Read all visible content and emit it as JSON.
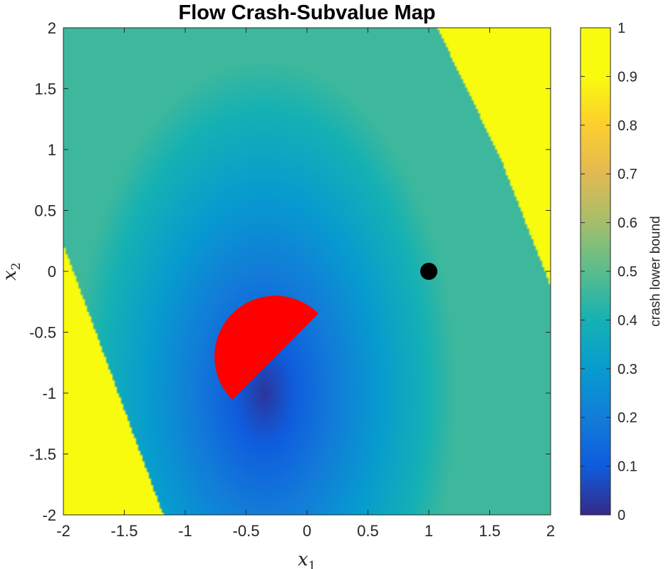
{
  "chart_data": {
    "type": "heatmap",
    "title": "Flow Crash-Subvalue Map",
    "xlabel": "x",
    "xlabel_sub": "1",
    "ylabel": "x",
    "ylabel_sub": "2",
    "xlim": [
      -2,
      2
    ],
    "ylim": [
      -2,
      2
    ],
    "xticks": [
      -2,
      -1.5,
      -1,
      -0.5,
      0,
      0.5,
      1,
      1.5,
      2
    ],
    "yticks": [
      -2,
      -1.5,
      -1,
      -0.5,
      0,
      0.5,
      1,
      1.5,
      2
    ],
    "grid": false,
    "colormap": "parula",
    "colorbar": {
      "label": "crash lower bound",
      "range": [
        0,
        1
      ],
      "ticks": [
        0,
        0.1,
        0.2,
        0.3,
        0.4,
        0.5,
        0.6,
        0.7,
        0.8,
        0.9,
        1
      ]
    },
    "field": {
      "minimum_at": [
        -0.35,
        -1.0
      ],
      "saturated_value": 1,
      "saturated_regions": [
        {
          "description": "upper-right band",
          "boundary": [
            [
              1.07,
              2
            ],
            [
              1.6,
              0.9
            ],
            [
              2,
              -0.12
            ]
          ]
        },
        {
          "description": "lower-left band",
          "boundary": [
            [
              -2,
              0.22
            ],
            [
              -1.55,
              -1.0
            ],
            [
              -1.18,
              -2
            ]
          ]
        }
      ]
    },
    "markers": [
      {
        "kind": "point",
        "x": 1,
        "y": 0,
        "color": "#000000"
      },
      {
        "kind": "half-disk",
        "center": [
          -0.26,
          -0.7
        ],
        "radius": 0.5,
        "orientation_deg": -45,
        "color": "#ff0000"
      }
    ]
  }
}
